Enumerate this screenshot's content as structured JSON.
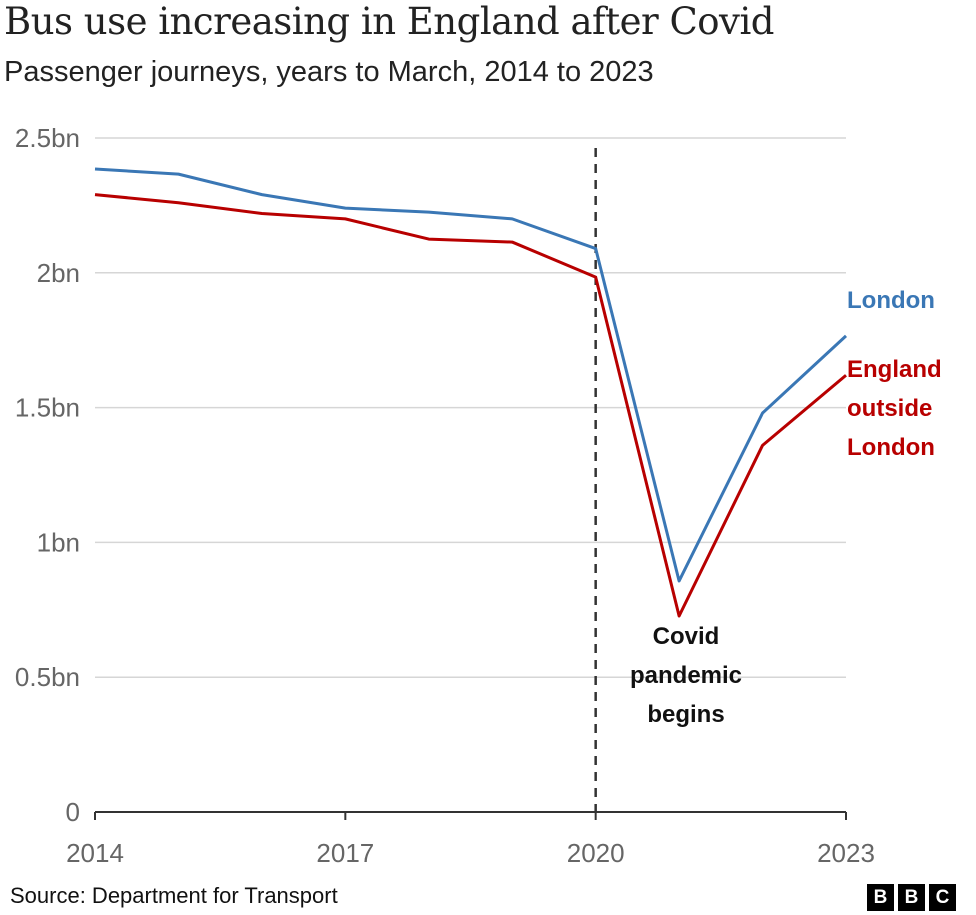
{
  "chart_data": {
    "type": "line",
    "title": "Bus use increasing in England after Covid",
    "subtitle": "Passenger journeys, years to March, 2014 to 2023",
    "x": [
      2014,
      2015,
      2016,
      2017,
      2018,
      2019,
      2020,
      2021,
      2022,
      2023
    ],
    "x_ticks": [
      "2014",
      "2017",
      "2020",
      "2023"
    ],
    "y_ticks": [
      {
        "value": 0,
        "label": "0"
      },
      {
        "value": 0.5,
        "label": "0.5bn"
      },
      {
        "value": 1,
        "label": "1bn"
      },
      {
        "value": 1.5,
        "label": "1.5bn"
      },
      {
        "value": 2,
        "label": "2bn"
      },
      {
        "value": 2.5,
        "label": "2.5bn"
      }
    ],
    "ylim": [
      0,
      2.5
    ],
    "xlim": [
      2014,
      2023
    ],
    "grid": true,
    "series": [
      {
        "name": "London",
        "label_lines": [
          "London"
        ],
        "color": "#3a77b5",
        "values": [
          2.385,
          2.366,
          2.29,
          2.24,
          2.225,
          2.2,
          2.09,
          0.857,
          1.48,
          1.766
        ]
      },
      {
        "name": "England outside London",
        "label_lines": [
          "England",
          "outside",
          "London"
        ],
        "color": "#b80000",
        "values": [
          2.29,
          2.26,
          2.22,
          2.2,
          2.125,
          2.114,
          1.984,
          0.727,
          1.36,
          1.62
        ]
      }
    ],
    "annotation": {
      "x": 2020,
      "lines": [
        "Covid",
        "pandemic",
        "begins"
      ]
    }
  },
  "footer": {
    "source": "Source: Department for Transport",
    "logo": [
      "B",
      "B",
      "C"
    ]
  }
}
